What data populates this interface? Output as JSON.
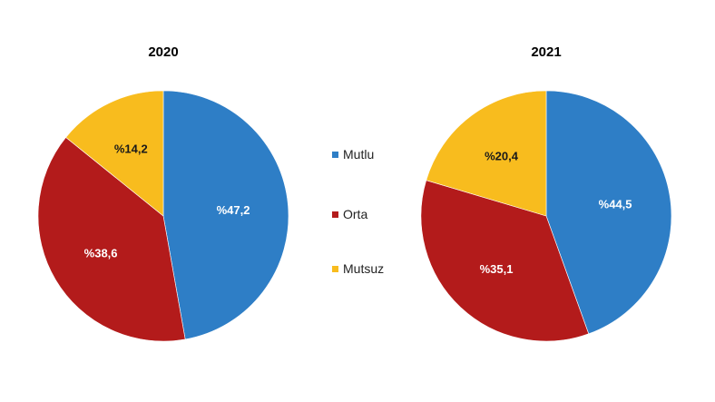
{
  "chart_data": [
    {
      "type": "pie",
      "title": "2020",
      "categories": [
        "Mutlu",
        "Orta",
        "Mutsuz"
      ],
      "values": [
        47.2,
        38.6,
        14.2
      ],
      "value_labels": [
        "%47,2",
        "%38,6",
        "%14,2"
      ],
      "colors": [
        "#2E7EC6",
        "#B31B1B",
        "#F8BC1E"
      ],
      "label_colors": [
        "#ffffff",
        "#ffffff",
        "#1a1a1a"
      ],
      "start": "12 o'clock",
      "direction": "clockwise"
    },
    {
      "type": "pie",
      "title": "2021",
      "categories": [
        "Mutlu",
        "Orta",
        "Mutsuz"
      ],
      "values": [
        44.5,
        35.1,
        20.4
      ],
      "value_labels": [
        "%44,5",
        "%35,1",
        "%20,4"
      ],
      "colors": [
        "#2E7EC6",
        "#B31B1B",
        "#F8BC1E"
      ],
      "label_colors": [
        "#ffffff",
        "#ffffff",
        "#1a1a1a"
      ],
      "start": "12 o'clock",
      "direction": "clockwise"
    }
  ],
  "legend": {
    "placement": "center",
    "items": [
      {
        "label": "Mutlu",
        "color": "#2E7EC6"
      },
      {
        "label": "Orta",
        "color": "#B31B1B"
      },
      {
        "label": "Mutsuz",
        "color": "#F8BC1E"
      }
    ]
  }
}
